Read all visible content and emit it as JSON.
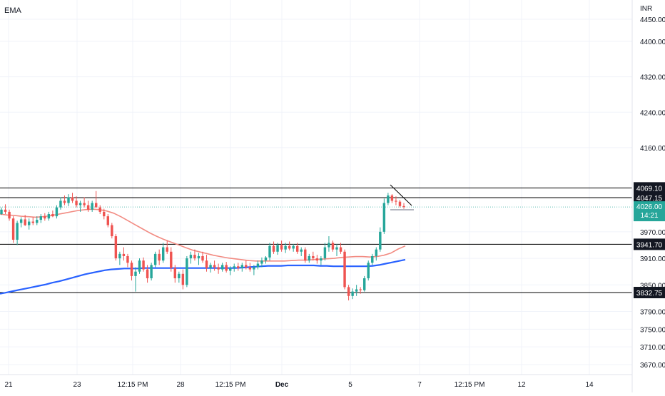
{
  "indicator_label": "EMA",
  "currency": "INR",
  "colors": {
    "up": "#26a69a",
    "down": "#ef5350",
    "ema_short": "#f28b82",
    "ema_long": "#2962ff",
    "level_line": "#000000",
    "price_line": "#26a69a",
    "grid": "#f0f3fa",
    "axis_text": "#131722",
    "trend_line": "#000000",
    "support_short": "#b2b5be"
  },
  "chart_data": {
    "type": "candlestick",
    "y_axis": {
      "position": "right",
      "ticks": [
        4450,
        4400,
        4320,
        4240,
        4160,
        3970,
        3910,
        3850,
        3790,
        3750,
        3710,
        3670
      ],
      "tick_labels": [
        "4450.00",
        "4400.00",
        "4320.00",
        "4240.00",
        "4160.00",
        "3970.00",
        "3910.00",
        "3850.00",
        "3790.00",
        "3750.00",
        "3710.00",
        "3670.00"
      ],
      "ylim": [
        3652,
        4465
      ]
    },
    "x_axis": {
      "labels": [
        "21",
        "23",
        "12:15 PM",
        "28",
        "12:15 PM",
        "Dec",
        "5",
        "7",
        "12:15 PM",
        "12",
        "14"
      ],
      "bold_labels": [
        "Dec"
      ]
    },
    "horizontal_levels": [
      {
        "value": 4069.1,
        "label": "4069.10"
      },
      {
        "value": 4047.15,
        "label": "4047.15"
      },
      {
        "value": 3941.7,
        "label": "3941.70"
      },
      {
        "value": 3832.75,
        "label": "3832.75"
      }
    ],
    "current_price": {
      "value": 4026.0,
      "label": "4026.00",
      "countdown": "14:21"
    },
    "candles": [
      [
        4010,
        4025,
        4008,
        4020
      ],
      [
        4020,
        4032,
        4010,
        4015
      ],
      [
        4015,
        4020,
        3995,
        4000
      ],
      [
        4000,
        4005,
        3945,
        3952
      ],
      [
        3952,
        3995,
        3940,
        3990
      ],
      [
        3990,
        4003,
        3980,
        3998
      ],
      [
        3998,
        4008,
        3983,
        3985
      ],
      [
        3985,
        4000,
        3975,
        3993
      ],
      [
        3993,
        4003,
        3985,
        3990
      ],
      [
        3990,
        4005,
        3985,
        3997
      ],
      [
        3997,
        4010,
        3990,
        4005
      ],
      [
        4005,
        4012,
        3995,
        4000
      ],
      [
        4000,
        4015,
        3995,
        4010
      ],
      [
        4010,
        4018,
        4003,
        4005
      ],
      [
        4005,
        4030,
        4000,
        4025
      ],
      [
        4025,
        4048,
        4020,
        4040
      ],
      [
        4040,
        4052,
        4030,
        4035
      ],
      [
        4035,
        4055,
        4028,
        4048
      ],
      [
        4048,
        4058,
        4035,
        4040
      ],
      [
        4040,
        4050,
        4025,
        4030
      ],
      [
        4030,
        4040,
        4015,
        4035
      ],
      [
        4035,
        4048,
        4025,
        4030
      ],
      [
        4030,
        4040,
        4015,
        4020
      ],
      [
        4020,
        4040,
        4015,
        4035
      ],
      [
        4035,
        4062,
        4030,
        4025
      ],
      [
        4025,
        4030,
        4010,
        4015
      ],
      [
        4015,
        4022,
        3998,
        4005
      ],
      [
        4005,
        4010,
        3980,
        3985
      ],
      [
        3985,
        3990,
        3955,
        3960
      ],
      [
        3960,
        3965,
        3905,
        3910
      ],
      [
        3910,
        3925,
        3895,
        3920
      ],
      [
        3920,
        3935,
        3905,
        3915
      ],
      [
        3915,
        3920,
        3890,
        3900
      ],
      [
        3900,
        3905,
        3860,
        3870
      ],
      [
        3870,
        3890,
        3835,
        3880
      ],
      [
        3880,
        3910,
        3875,
        3905
      ],
      [
        3905,
        3912,
        3880,
        3885
      ],
      [
        3885,
        3895,
        3855,
        3865
      ],
      [
        3865,
        3900,
        3860,
        3895
      ],
      [
        3895,
        3925,
        3890,
        3920
      ],
      [
        3920,
        3930,
        3895,
        3905
      ],
      [
        3905,
        3945,
        3900,
        3935
      ],
      [
        3935,
        3950,
        3920,
        3925
      ],
      [
        3925,
        3935,
        3880,
        3888
      ],
      [
        3888,
        3895,
        3855,
        3865
      ],
      [
        3865,
        3880,
        3855,
        3875
      ],
      [
        3875,
        3885,
        3840,
        3850
      ],
      [
        3850,
        3915,
        3845,
        3910
      ],
      [
        3910,
        3925,
        3898,
        3918
      ],
      [
        3918,
        3930,
        3905,
        3910
      ],
      [
        3910,
        3922,
        3895,
        3915
      ],
      [
        3915,
        3925,
        3900,
        3905
      ],
      [
        3905,
        3918,
        3880,
        3888
      ],
      [
        3888,
        3900,
        3878,
        3895
      ],
      [
        3895,
        3905,
        3882,
        3890
      ],
      [
        3890,
        3898,
        3875,
        3885
      ],
      [
        3885,
        3900,
        3880,
        3895
      ],
      [
        3895,
        3902,
        3878,
        3882
      ],
      [
        3882,
        3892,
        3872,
        3888
      ],
      [
        3888,
        3898,
        3880,
        3892
      ],
      [
        3892,
        3900,
        3882,
        3888
      ],
      [
        3888,
        3900,
        3880,
        3895
      ],
      [
        3895,
        3905,
        3885,
        3890
      ],
      [
        3890,
        3900,
        3880,
        3885
      ],
      [
        3885,
        3895,
        3872,
        3890
      ],
      [
        3890,
        3905,
        3885,
        3898
      ],
      [
        3898,
        3912,
        3890,
        3905
      ],
      [
        3905,
        3915,
        3898,
        3912
      ],
      [
        3912,
        3945,
        3905,
        3938
      ],
      [
        3938,
        3948,
        3920,
        3925
      ],
      [
        3925,
        3945,
        3918,
        3940
      ],
      [
        3940,
        3950,
        3925,
        3930
      ],
      [
        3930,
        3945,
        3922,
        3938
      ],
      [
        3938,
        3948,
        3928,
        3932
      ],
      [
        3932,
        3942,
        3925,
        3938
      ],
      [
        3938,
        3945,
        3920,
        3925
      ],
      [
        3925,
        3935,
        3915,
        3930
      ],
      [
        3930,
        3935,
        3900,
        3905
      ],
      [
        3905,
        3920,
        3900,
        3915
      ],
      [
        3915,
        3925,
        3905,
        3910
      ],
      [
        3910,
        3918,
        3898,
        3905
      ],
      [
        3905,
        3915,
        3895,
        3910
      ],
      [
        3910,
        3945,
        3905,
        3935
      ],
      [
        3935,
        3960,
        3925,
        3945
      ],
      [
        3945,
        3950,
        3925,
        3930
      ],
      [
        3930,
        3942,
        3915,
        3935
      ],
      [
        3935,
        3945,
        3920,
        3925
      ],
      [
        3925,
        3930,
        3840,
        3845
      ],
      [
        3845,
        3850,
        3815,
        3825
      ],
      [
        3825,
        3842,
        3818,
        3835
      ],
      [
        3835,
        3850,
        3825,
        3840
      ],
      [
        3840,
        3845,
        3830,
        3838
      ],
      [
        3838,
        3870,
        3835,
        3865
      ],
      [
        3865,
        3905,
        3860,
        3900
      ],
      [
        3900,
        3920,
        3895,
        3915
      ],
      [
        3915,
        3935,
        3905,
        3930
      ],
      [
        3930,
        3980,
        3925,
        3970
      ],
      [
        3970,
        4045,
        3965,
        4035
      ],
      [
        4035,
        4058,
        4030,
        4052
      ],
      [
        4052,
        4055,
        4035,
        4040
      ],
      [
        4040,
        4050,
        4030,
        4038
      ],
      [
        4038,
        4042,
        4025,
        4028
      ],
      [
        4028,
        4035,
        4022,
        4026
      ]
    ],
    "ema_short_series": [
      4010,
      4008,
      4007,
      4005,
      4004,
      4003,
      4004,
      4006,
      4009,
      4012,
      4015,
      4018,
      4020,
      4021,
      4020,
      4017,
      4012,
      4004,
      3995,
      3986,
      3977,
      3968,
      3960,
      3953,
      3947,
      3941,
      3935,
      3929,
      3925,
      3921,
      3917,
      3914,
      3911,
      3909,
      3907,
      3905,
      3904,
      3904,
      3904,
      3904,
      3904,
      3905,
      3906,
      3906,
      3907,
      3908,
      3909,
      3910,
      3912,
      3913,
      3914,
      3914,
      3913,
      3914,
      3917,
      3922,
      3931,
      3938
    ],
    "ema_long_series": [
      3830,
      3833,
      3836,
      3839,
      3842,
      3845,
      3848,
      3851,
      3855,
      3858,
      3862,
      3866,
      3870,
      3874,
      3877,
      3880,
      3883,
      3885,
      3886,
      3887,
      3887,
      3887,
      3888,
      3888,
      3888,
      3888,
      3888,
      3888,
      3888,
      3888,
      3888,
      3888,
      3888,
      3888,
      3888,
      3888,
      3888,
      3889,
      3890,
      3891,
      3892,
      3893,
      3893,
      3893,
      3894,
      3894,
      3894,
      3894,
      3894,
      3893,
      3893,
      3892,
      3892,
      3892,
      3892,
      3892,
      3892,
      3893,
      3895,
      3898,
      3901,
      3904,
      3907
    ]
  }
}
